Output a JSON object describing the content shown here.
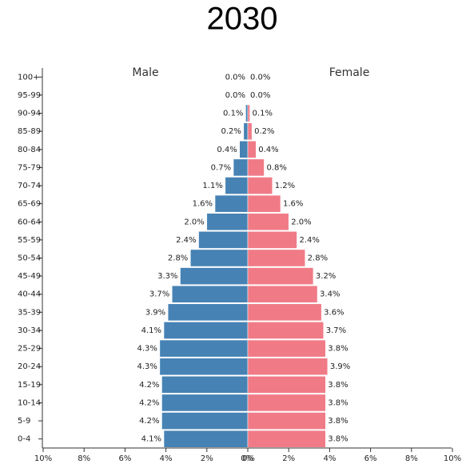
{
  "chart_data": {
    "type": "pyramid",
    "title": "2030",
    "categories": [
      "0-4",
      "5-9",
      "10-14",
      "15-19",
      "20-24",
      "25-29",
      "30-34",
      "35-39",
      "40-44",
      "45-49",
      "50-54",
      "55-59",
      "60-64",
      "65-69",
      "70-74",
      "75-79",
      "80-84",
      "85-89",
      "90-94",
      "95-99",
      "100+"
    ],
    "series": [
      {
        "name": "Male",
        "color": "#4682b4",
        "side": "left",
        "values": [
          4.1,
          4.2,
          4.2,
          4.2,
          4.3,
          4.3,
          4.1,
          3.9,
          3.7,
          3.3,
          2.8,
          2.4,
          2.0,
          1.6,
          1.1,
          0.7,
          0.4,
          0.2,
          0.1,
          0.0,
          0.0
        ],
        "value_labels": [
          "4.1%",
          "4.2%",
          "4.2%",
          "4.2%",
          "4.3%",
          "4.3%",
          "4.1%",
          "3.9%",
          "3.7%",
          "3.3%",
          "2.8%",
          "2.4%",
          "2.0%",
          "1.6%",
          "1.1%",
          "0.7%",
          "0.4%",
          "0.2%",
          "0.1%",
          "0.0%",
          "0.0%"
        ]
      },
      {
        "name": "Female",
        "color": "#f07b87",
        "side": "right",
        "values": [
          3.8,
          3.8,
          3.8,
          3.8,
          3.9,
          3.8,
          3.7,
          3.6,
          3.4,
          3.2,
          2.8,
          2.4,
          2.0,
          1.6,
          1.2,
          0.8,
          0.4,
          0.2,
          0.1,
          0.0,
          0.0
        ],
        "value_labels": [
          "3.8%",
          "3.8%",
          "3.8%",
          "3.8%",
          "3.9%",
          "3.8%",
          "3.7%",
          "3.6%",
          "3.4%",
          "3.2%",
          "2.8%",
          "2.4%",
          "2.0%",
          "1.6%",
          "1.2%",
          "0.8%",
          "0.4%",
          "0.2%",
          "0.1%",
          "0.0%",
          "0.0%"
        ]
      }
    ],
    "xlim": [
      0,
      10
    ],
    "male_xticks": [
      {
        "value": 10,
        "label": "10%"
      },
      {
        "value": 8,
        "label": "8%"
      },
      {
        "value": 6,
        "label": "6%"
      },
      {
        "value": 4,
        "label": "4%"
      },
      {
        "value": 2,
        "label": "2%"
      },
      {
        "value": 0,
        "label": "0%"
      }
    ],
    "female_xticks": [
      {
        "value": 0,
        "label": "0%"
      },
      {
        "value": 2,
        "label": "2%"
      },
      {
        "value": 4,
        "label": "4%"
      },
      {
        "value": 6,
        "label": "6%"
      },
      {
        "value": 8,
        "label": "8%"
      },
      {
        "value": 10,
        "label": "10%"
      }
    ]
  }
}
